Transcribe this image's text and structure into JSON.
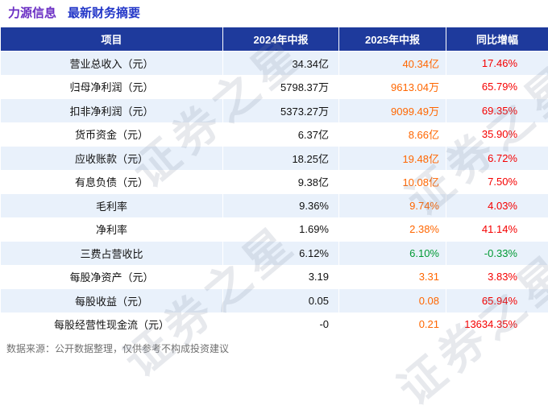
{
  "title": {
    "stock": "力源信息",
    "report": "最新财务摘要"
  },
  "chart_data": {
    "type": "table",
    "title": "力源信息 最新财务摘要",
    "columns": [
      "项目",
      "2024年中报",
      "2025年中报",
      "同比增幅"
    ],
    "rows": [
      {
        "item": "营业总收入（元）",
        "v2024": "34.34亿",
        "v2025": "40.34亿",
        "yoy": "17.46%",
        "trend": "up"
      },
      {
        "item": "归母净利润（元）",
        "v2024": "5798.37万",
        "v2025": "9613.04万",
        "yoy": "65.79%",
        "trend": "up"
      },
      {
        "item": "扣非净利润（元）",
        "v2024": "5373.27万",
        "v2025": "9099.49万",
        "yoy": "69.35%",
        "trend": "up"
      },
      {
        "item": "货币资金（元）",
        "v2024": "6.37亿",
        "v2025": "8.66亿",
        "yoy": "35.90%",
        "trend": "up"
      },
      {
        "item": "应收账款（元）",
        "v2024": "18.25亿",
        "v2025": "19.48亿",
        "yoy": "6.72%",
        "trend": "up"
      },
      {
        "item": "有息负债（元）",
        "v2024": "9.38亿",
        "v2025": "10.08亿",
        "yoy": "7.50%",
        "trend": "up"
      },
      {
        "item": "毛利率",
        "v2024": "9.36%",
        "v2025": "9.74%",
        "yoy": "4.03%",
        "trend": "up"
      },
      {
        "item": "净利率",
        "v2024": "1.69%",
        "v2025": "2.38%",
        "yoy": "41.14%",
        "trend": "up"
      },
      {
        "item": "三费占营收比",
        "v2024": "6.12%",
        "v2025": "6.10%",
        "yoy": "-0.33%",
        "trend": "down"
      },
      {
        "item": "每股净资产（元）",
        "v2024": "3.19",
        "v2025": "3.31",
        "yoy": "3.83%",
        "trend": "up"
      },
      {
        "item": "每股收益（元）",
        "v2024": "0.05",
        "v2025": "0.08",
        "yoy": "65.94%",
        "trend": "up"
      },
      {
        "item": "每股经营性现金流（元）",
        "v2024": "-0",
        "v2025": "0.21",
        "yoy": "13634.35%",
        "trend": "up"
      }
    ]
  },
  "footer": {
    "source_note": "数据来源：公开数据整理，仅供参考不构成投资建议"
  },
  "watermark": {
    "text": "证券之星"
  },
  "colors": {
    "header_bg": "#1e3a9c",
    "title_stock": "#6b2fc4",
    "title_report": "#2337c8",
    "row_alt": "#e9f1fb",
    "value_2025_up": "#ff6600",
    "yoy_up": "#f50000",
    "down": "#009933"
  }
}
